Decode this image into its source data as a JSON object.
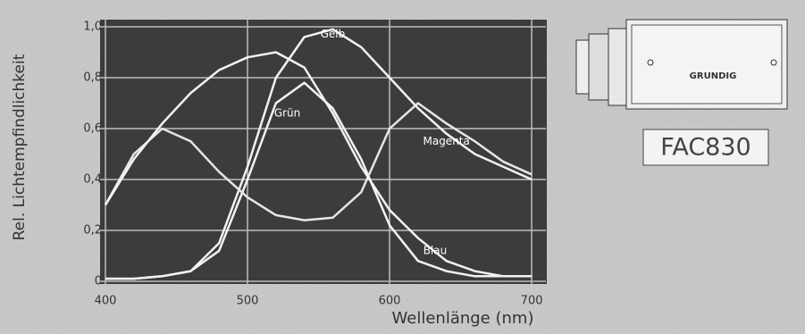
{
  "chart_data": {
    "type": "line",
    "ylabel": "Rel. Lichtempfindlichkeit",
    "xlabel": "Wellenlänge (nm)",
    "x": [
      400,
      420,
      440,
      460,
      480,
      500,
      520,
      540,
      560,
      580,
      600,
      620,
      640,
      660,
      680,
      700
    ],
    "series": [
      {
        "name": "Gelb",
        "color": "#f2f2f2",
        "values": [
          0.01,
          0.01,
          0.02,
          0.04,
          0.15,
          0.45,
          0.8,
          0.96,
          0.99,
          0.92,
          0.8,
          0.68,
          0.58,
          0.5,
          0.45,
          0.4
        ]
      },
      {
        "name": "Grün",
        "color": "#f2f2f2",
        "values": [
          0.01,
          0.01,
          0.02,
          0.04,
          0.12,
          0.4,
          0.7,
          0.78,
          0.68,
          0.48,
          0.22,
          0.08,
          0.04,
          0.02,
          0.02,
          0.02
        ]
      },
      {
        "name": "Magenta",
        "color": "#e6e6e6",
        "values": [
          0.3,
          0.5,
          0.6,
          0.55,
          0.43,
          0.33,
          0.26,
          0.24,
          0.25,
          0.35,
          0.6,
          0.7,
          0.62,
          0.55,
          0.47,
          0.42
        ]
      },
      {
        "name": "Blau",
        "color": "#f2f2f2",
        "values": [
          0.3,
          0.48,
          0.62,
          0.74,
          0.83,
          0.88,
          0.9,
          0.84,
          0.66,
          0.45,
          0.28,
          0.17,
          0.08,
          0.04,
          0.02,
          0.02
        ]
      }
    ],
    "xlim": [
      400,
      710
    ],
    "xticks": [
      400,
      500,
      600,
      700
    ],
    "ylim": [
      0,
      1.0
    ],
    "yticks": [
      0,
      {
        "value": 0.2,
        "label": "0,2"
      },
      {
        "value": 0.4,
        "label": "0,4"
      },
      {
        "value": 0.6,
        "label": "0,6"
      },
      {
        "value": 0.8,
        "label": "0,8"
      },
      {
        "value": 1.0,
        "label": "1,0"
      }
    ],
    "grid": true
  },
  "camera": {
    "brand": "GRUNDIG",
    "model": "FAC830"
  }
}
